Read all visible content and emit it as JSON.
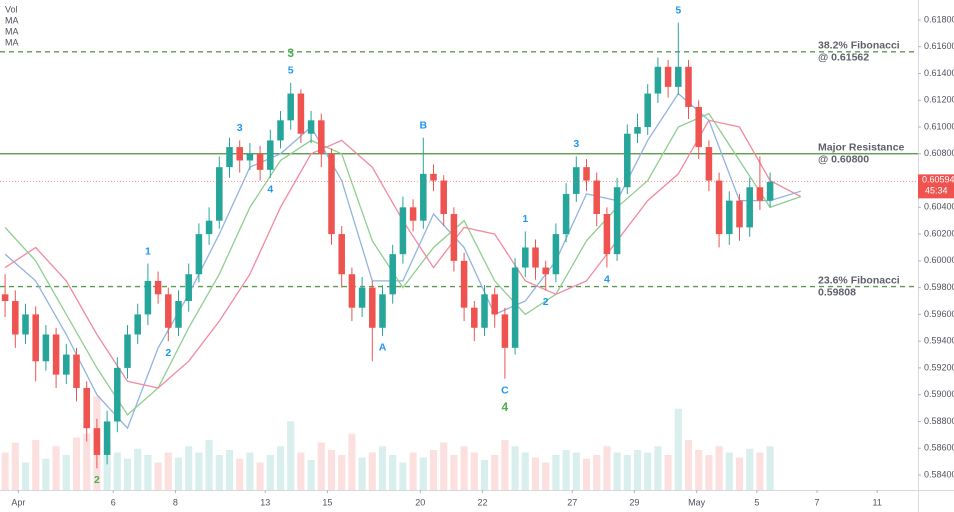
{
  "chart_data": {
    "type": "candlestick",
    "x": [
      0,
      1,
      2,
      3,
      4,
      5,
      6,
      7,
      8,
      9,
      10,
      11,
      12,
      13,
      14,
      15,
      16,
      17,
      18,
      19,
      20,
      21,
      22,
      23,
      24,
      25,
      26,
      27,
      28,
      29,
      30,
      31,
      32,
      33,
      34,
      35,
      36,
      37,
      38,
      39,
      40,
      41,
      42,
      43,
      44,
      45,
      46,
      47,
      48,
      49,
      50,
      51,
      52,
      53,
      54,
      55,
      56,
      57,
      58,
      59,
      60,
      61,
      62,
      63,
      64,
      65,
      66,
      67,
      68,
      69,
      70,
      71,
      72,
      73,
      74,
      75
    ],
    "open": [
      0.5975,
      0.597,
      0.5945,
      0.596,
      0.5925,
      0.5945,
      0.5915,
      0.593,
      0.5905,
      0.5875,
      0.5855,
      0.588,
      0.592,
      0.5945,
      0.596,
      0.5985,
      0.5975,
      0.595,
      0.597,
      0.599,
      0.602,
      0.603,
      0.607,
      0.6085,
      0.6075,
      0.608,
      0.6068,
      0.609,
      0.6105,
      0.6125,
      0.6095,
      0.6105,
      0.608,
      0.602,
      0.599,
      0.5965,
      0.598,
      0.595,
      0.5975,
      0.6005,
      0.604,
      0.603,
      0.6065,
      0.606,
      0.6035,
      0.6,
      0.5965,
      0.595,
      0.5975,
      0.596,
      0.5935,
      0.5995,
      0.601,
      0.5995,
      0.599,
      0.602,
      0.605,
      0.607,
      0.606,
      0.6035,
      0.6005,
      0.6055,
      0.6095,
      0.61,
      0.6125,
      0.6145,
      0.613,
      0.6145,
      0.6115,
      0.6085,
      0.606,
      0.602,
      0.6045,
      0.6025,
      0.6055,
      0.6045
    ],
    "high": [
      0.599,
      0.5978,
      0.5968,
      0.5966,
      0.5952,
      0.595,
      0.5938,
      0.5935,
      0.591,
      0.5882,
      0.5888,
      0.5928,
      0.5952,
      0.5968,
      0.5998,
      0.5992,
      0.598,
      0.5978,
      0.5998,
      0.6028,
      0.604,
      0.6078,
      0.6092,
      0.609,
      0.6088,
      0.6086,
      0.6098,
      0.6112,
      0.6133,
      0.6128,
      0.6112,
      0.611,
      0.6084,
      0.6026,
      0.5995,
      0.5988,
      0.5985,
      0.5982,
      0.6012,
      0.6048,
      0.6046,
      0.6092,
      0.6072,
      0.6064,
      0.604,
      0.6006,
      0.597,
      0.5982,
      0.598,
      0.5965,
      0.6002,
      0.6022,
      0.6016,
      0.6,
      0.6028,
      0.6058,
      0.6078,
      0.6076,
      0.6066,
      0.604,
      0.6062,
      0.6102,
      0.611,
      0.6132,
      0.6152,
      0.615,
      0.6178,
      0.615,
      0.612,
      0.609,
      0.6066,
      0.6052,
      0.605,
      0.6062,
      0.6078,
      0.6066
    ],
    "low": [
      0.5958,
      0.5935,
      0.5938,
      0.591,
      0.5918,
      0.5905,
      0.5908,
      0.5895,
      0.5865,
      0.5845,
      0.5848,
      0.5872,
      0.5912,
      0.5938,
      0.5952,
      0.5968,
      0.594,
      0.5944,
      0.5962,
      0.5984,
      0.6012,
      0.6024,
      0.6062,
      0.6066,
      0.6068,
      0.606,
      0.6062,
      0.6084,
      0.6098,
      0.6088,
      0.6088,
      0.607,
      0.6012,
      0.598,
      0.5955,
      0.5958,
      0.5925,
      0.5944,
      0.5968,
      0.5998,
      0.6022,
      0.6024,
      0.6052,
      0.6026,
      0.5992,
      0.5955,
      0.594,
      0.5944,
      0.595,
      0.5912,
      0.593,
      0.5988,
      0.5986,
      0.5978,
      0.5984,
      0.6014,
      0.6044,
      0.6052,
      0.6026,
      0.5995,
      0.6,
      0.605,
      0.6088,
      0.6094,
      0.6118,
      0.6122,
      0.6124,
      0.6106,
      0.6076,
      0.6052,
      0.601,
      0.6012,
      0.6015,
      0.6018,
      0.6038,
      0.604
    ],
    "close": [
      0.597,
      0.5945,
      0.596,
      0.5925,
      0.5945,
      0.5915,
      0.593,
      0.5905,
      0.5875,
      0.5855,
      0.588,
      0.592,
      0.5945,
      0.596,
      0.5985,
      0.5975,
      0.595,
      0.597,
      0.599,
      0.602,
      0.603,
      0.607,
      0.6085,
      0.6075,
      0.608,
      0.6068,
      0.609,
      0.6105,
      0.6125,
      0.6095,
      0.6105,
      0.608,
      0.602,
      0.599,
      0.5965,
      0.598,
      0.595,
      0.5975,
      0.6005,
      0.604,
      0.603,
      0.6065,
      0.606,
      0.6035,
      0.6,
      0.5965,
      0.595,
      0.5975,
      0.596,
      0.5935,
      0.5995,
      0.601,
      0.5995,
      0.599,
      0.602,
      0.605,
      0.607,
      0.606,
      0.6035,
      0.6005,
      0.6055,
      0.6095,
      0.61,
      0.6125,
      0.6145,
      0.613,
      0.6145,
      0.6115,
      0.6085,
      0.606,
      0.602,
      0.6045,
      0.6025,
      0.6055,
      0.6045,
      0.6059
    ],
    "up_color": "#26a69a",
    "down_color": "#ef5350",
    "volume": {
      "name": "Vol",
      "ylim": [
        0,
        80
      ],
      "values": [
        30,
        38,
        22,
        40,
        25,
        35,
        28,
        42,
        45,
        75,
        38,
        30,
        25,
        33,
        28,
        22,
        30,
        26,
        35,
        30,
        40,
        28,
        32,
        25,
        30,
        22,
        28,
        35,
        55,
        30,
        24,
        38,
        32,
        28,
        45,
        26,
        30,
        35,
        28,
        22,
        30,
        26,
        32,
        38,
        28,
        35,
        30,
        24,
        28,
        40,
        35,
        30,
        26,
        22,
        28,
        32,
        30,
        25,
        28,
        35,
        30,
        28,
        32,
        30,
        35,
        28,
        65,
        40,
        32,
        28,
        35,
        30,
        26,
        33,
        30,
        35
      ]
    },
    "series": [
      {
        "name": "MA",
        "color": "#90b4e0",
        "x": [
          0,
          3,
          6,
          9,
          12,
          15,
          18,
          21,
          24,
          27,
          30,
          33,
          36,
          39,
          42,
          45,
          48,
          51,
          54,
          57,
          60,
          63,
          66,
          69,
          72,
          75,
          78
        ],
        "values": [
          0.6005,
          0.5985,
          0.5945,
          0.59,
          0.5875,
          0.5935,
          0.5975,
          0.602,
          0.607,
          0.608,
          0.61,
          0.606,
          0.5985,
          0.5985,
          0.6035,
          0.601,
          0.596,
          0.597,
          0.6,
          0.605,
          0.6045,
          0.609,
          0.6125,
          0.6105,
          0.6045,
          0.6045,
          0.6052
        ]
      },
      {
        "name": "MA",
        "color": "#8fce8f",
        "x": [
          0,
          3,
          6,
          9,
          12,
          15,
          18,
          21,
          24,
          27,
          30,
          33,
          36,
          39,
          42,
          45,
          48,
          51,
          54,
          57,
          60,
          63,
          66,
          69,
          72,
          75,
          78
        ],
        "values": [
          0.6025,
          0.6,
          0.596,
          0.592,
          0.5885,
          0.5905,
          0.595,
          0.599,
          0.604,
          0.6075,
          0.609,
          0.608,
          0.6015,
          0.598,
          0.601,
          0.603,
          0.5985,
          0.596,
          0.5975,
          0.6015,
          0.604,
          0.606,
          0.61,
          0.611,
          0.6075,
          0.604,
          0.6048
        ]
      },
      {
        "name": "MA",
        "color": "#f28aa0",
        "x": [
          0,
          3,
          6,
          9,
          12,
          15,
          18,
          21,
          24,
          27,
          30,
          33,
          36,
          39,
          42,
          45,
          48,
          51,
          54,
          57,
          60,
          63,
          66,
          69,
          72,
          75,
          78
        ],
        "values": [
          0.5995,
          0.601,
          0.5985,
          0.5945,
          0.591,
          0.5905,
          0.5925,
          0.5955,
          0.599,
          0.604,
          0.608,
          0.609,
          0.607,
          0.603,
          0.5995,
          0.6025,
          0.602,
          0.5985,
          0.5975,
          0.5985,
          0.6015,
          0.6045,
          0.6065,
          0.6105,
          0.61,
          0.606,
          0.6048
        ]
      }
    ],
    "xlim": [
      -0.5,
      89.5
    ],
    "xticks": [
      {
        "value": 1.3,
        "label": "Apr"
      },
      {
        "value": 10.6,
        "label": "6"
      },
      {
        "value": 16.7,
        "label": "8"
      },
      {
        "value": 25.5,
        "label": "13"
      },
      {
        "value": 31.6,
        "label": "15"
      },
      {
        "value": 40.7,
        "label": "20"
      },
      {
        "value": 46.8,
        "label": "22"
      },
      {
        "value": 55.6,
        "label": "27"
      },
      {
        "value": 61.7,
        "label": "29"
      },
      {
        "value": 67.8,
        "label": "May"
      },
      {
        "value": 73.7,
        "label": "5"
      },
      {
        "value": 79.6,
        "label": "7"
      },
      {
        "value": 85.5,
        "label": "11"
      }
    ],
    "ylim": [
      0.58288,
      0.61949
    ],
    "yticks": [
      {
        "value": 0.618,
        "label": "0.61800"
      },
      {
        "value": 0.616,
        "label": "0.61600"
      },
      {
        "value": 0.614,
        "label": "0.61400"
      },
      {
        "value": 0.612,
        "label": "0.61200"
      },
      {
        "value": 0.61,
        "label": "0.61000"
      },
      {
        "value": 0.608,
        "label": "0.60800"
      },
      {
        "value": 0.606,
        "label": "0.60600"
      },
      {
        "value": 0.604,
        "label": "0.60400"
      },
      {
        "value": 0.602,
        "label": "0.60200"
      },
      {
        "value": 0.6,
        "label": "0.60000"
      },
      {
        "value": 0.598,
        "label": "0.59800"
      },
      {
        "value": 0.596,
        "label": "0.59600"
      },
      {
        "value": 0.594,
        "label": "0.59400"
      },
      {
        "value": 0.592,
        "label": "0.59200"
      },
      {
        "value": 0.59,
        "label": "0.59000"
      },
      {
        "value": 0.588,
        "label": "0.58800"
      },
      {
        "value": 0.586,
        "label": "0.58600"
      },
      {
        "value": 0.584,
        "label": "0.58400"
      }
    ],
    "levels": [
      {
        "lines": [
          "38.2% Fibonacci",
          "@ 0.61562"
        ],
        "value": 0.61562,
        "style": "dashed",
        "color": "#5b9a4f"
      },
      {
        "lines": [
          "Major Resistance",
          "@ 0.60800"
        ],
        "value": 0.608,
        "style": "solid",
        "color": "#4e8f3a"
      },
      {
        "lines": [
          "23.6% Fibonacci",
          "0.59808"
        ],
        "value": 0.59808,
        "style": "dashed",
        "color": "#5b9a4f"
      }
    ],
    "current_price": {
      "value": 0.60594,
      "label": "0.60594",
      "countdown": "45:34",
      "color": "#ef5350"
    },
    "wave_labels": [
      {
        "x": 9,
        "side": "below",
        "texts": [
          {
            "text": "2",
            "color": "#4caf50"
          }
        ]
      },
      {
        "x": 14,
        "side": "above",
        "texts": [
          {
            "text": "1",
            "color": "#2196f3"
          }
        ]
      },
      {
        "x": 16,
        "side": "below",
        "texts": [
          {
            "text": "2",
            "color": "#2196f3"
          }
        ]
      },
      {
        "x": 23,
        "side": "above",
        "texts": [
          {
            "text": "3",
            "color": "#2196f3"
          }
        ]
      },
      {
        "x": 26,
        "side": "below",
        "texts": [
          {
            "text": "4",
            "color": "#2196f3"
          }
        ]
      },
      {
        "x": 28,
        "side": "above",
        "texts": [
          {
            "text": "5",
            "color": "#2196f3"
          },
          {
            "text": "3",
            "color": "#4caf50"
          }
        ]
      },
      {
        "x": 37,
        "side": "below",
        "texts": [
          {
            "text": "A",
            "color": "#2196f3"
          }
        ]
      },
      {
        "x": 41,
        "side": "above",
        "texts": [
          {
            "text": "B",
            "color": "#2196f3"
          }
        ]
      },
      {
        "x": 49,
        "side": "below",
        "texts": [
          {
            "text": "C",
            "color": "#2196f3"
          },
          {
            "text": "4",
            "color": "#4caf50"
          }
        ]
      },
      {
        "x": 51,
        "side": "above",
        "texts": [
          {
            "text": "1",
            "color": "#2196f3"
          }
        ]
      },
      {
        "x": 53,
        "side": "below",
        "texts": [
          {
            "text": "2",
            "color": "#2196f3"
          }
        ]
      },
      {
        "x": 56,
        "side": "above",
        "texts": [
          {
            "text": "3",
            "color": "#2196f3"
          }
        ]
      },
      {
        "x": 59,
        "side": "below",
        "texts": [
          {
            "text": "4",
            "color": "#2196f3"
          }
        ]
      },
      {
        "x": 66,
        "side": "above",
        "texts": [
          {
            "text": "5",
            "color": "#2196f3"
          },
          {
            "text": "5",
            "color": "#4caf50"
          }
        ]
      }
    ]
  }
}
